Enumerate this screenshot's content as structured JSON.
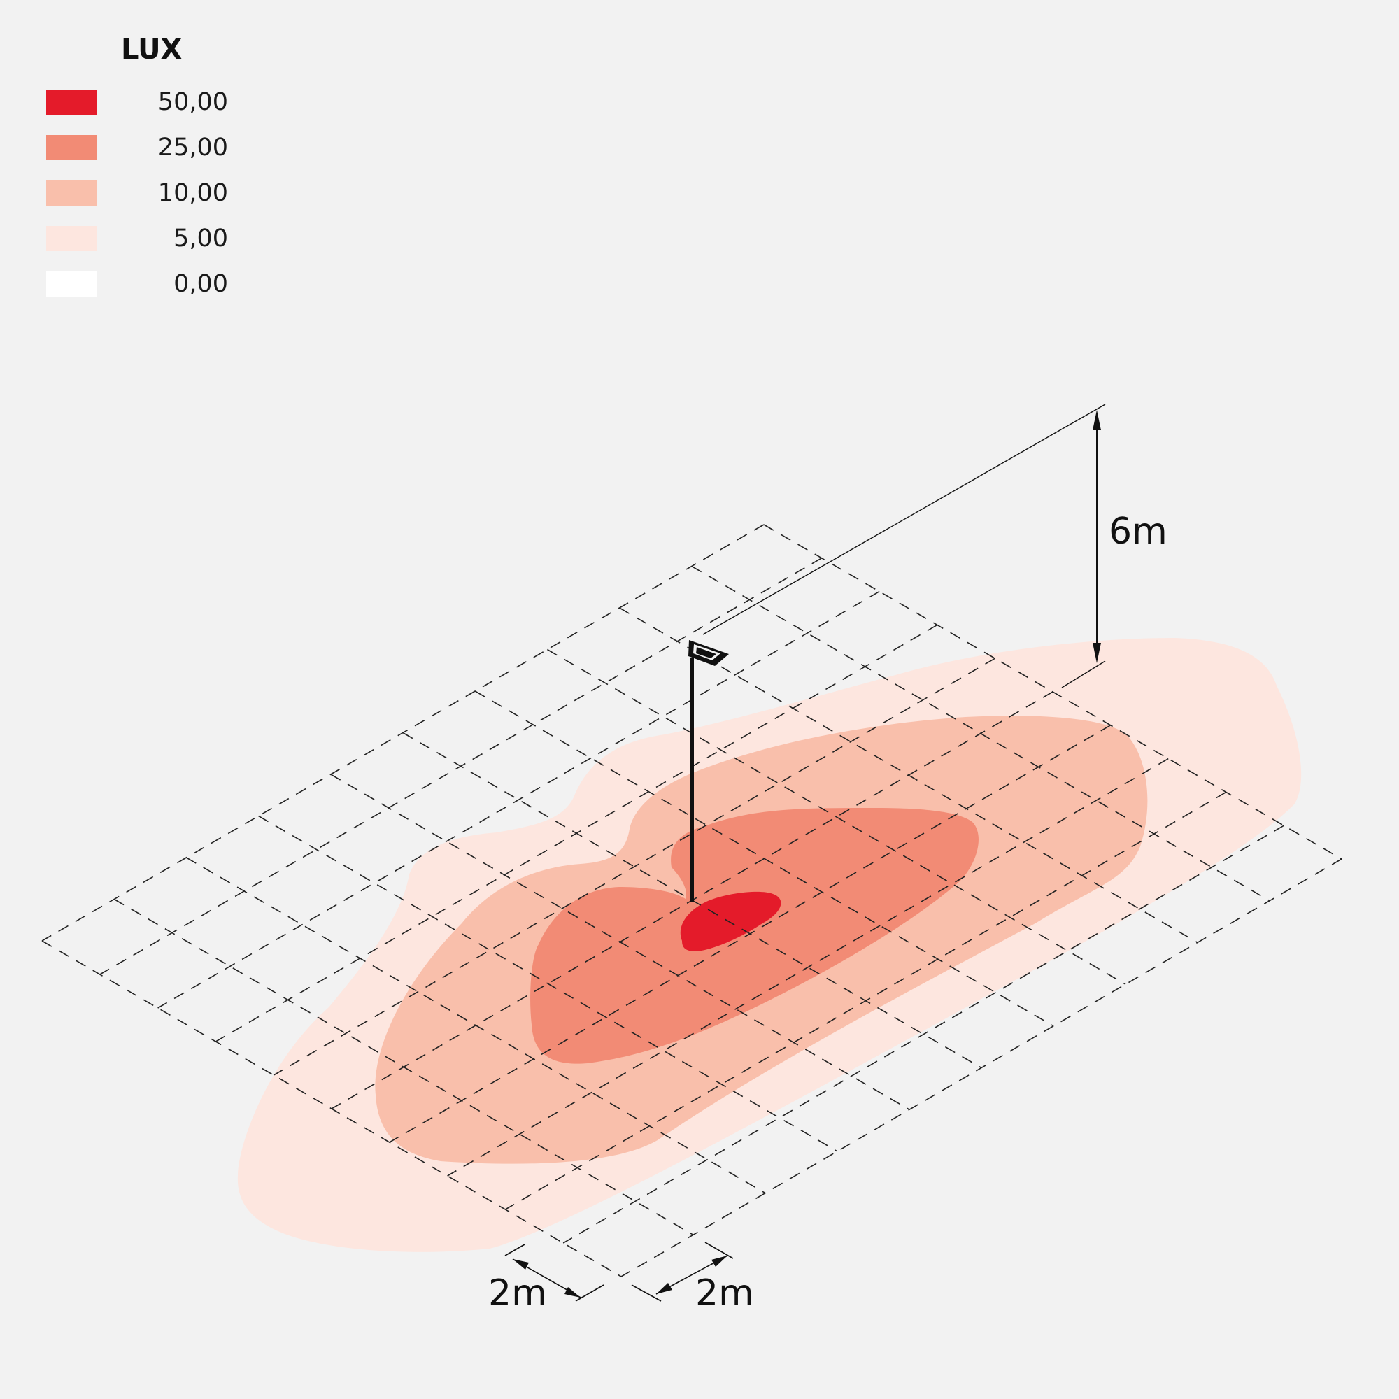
{
  "legend": {
    "title": "LUX",
    "items": [
      {
        "value": "50,00",
        "color": "#e41b2a"
      },
      {
        "value": "25,00",
        "color": "#f28b75"
      },
      {
        "value": "10,00",
        "color": "#f9bfab"
      },
      {
        "value": "5,00",
        "color": "#fde6df"
      },
      {
        "value": "0,00",
        "color": "#ffffff"
      }
    ]
  },
  "dimensions": {
    "height": "6m",
    "grid_x": "2m",
    "grid_y": "2m"
  },
  "colors": {
    "background": "#f2f2f2",
    "grid_line": "#222222",
    "pole": "#111111"
  }
}
